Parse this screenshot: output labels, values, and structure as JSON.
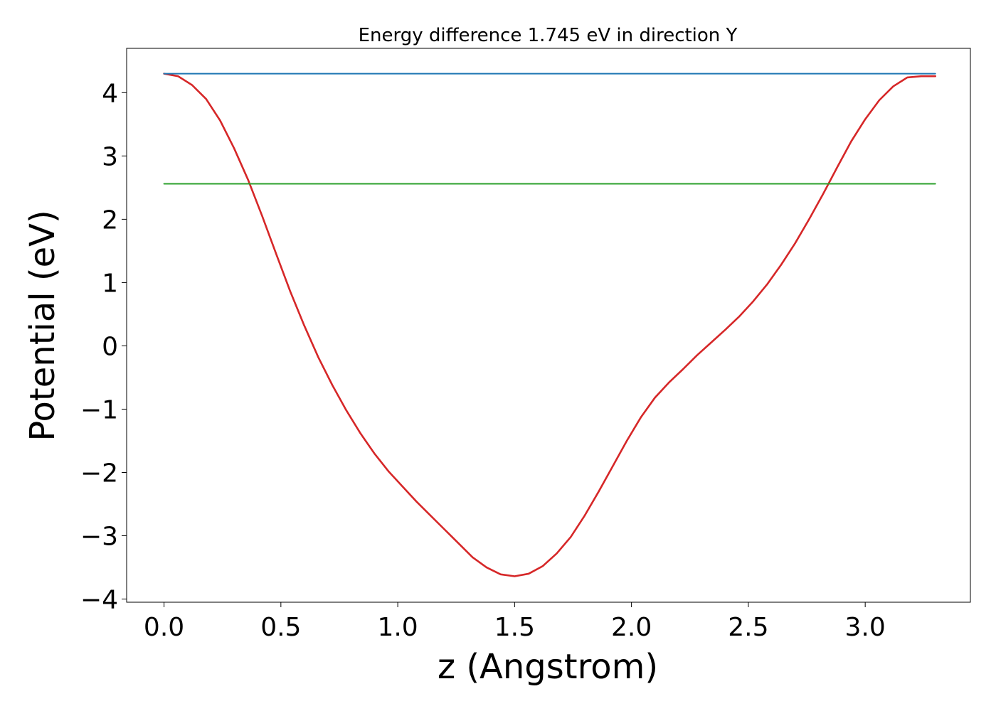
{
  "chart_data": {
    "type": "line",
    "title": "Energy difference 1.745 eV in direction Y",
    "xlabel": "z (Angstrom)",
    "ylabel": "Potential (eV)",
    "xlim": [
      -0.16,
      3.45
    ],
    "ylim": [
      -4.05,
      4.7
    ],
    "xticks": [
      0.0,
      0.5,
      1.0,
      1.5,
      2.0,
      2.5,
      3.0
    ],
    "xtick_labels": [
      "0.0",
      "0.5",
      "1.0",
      "1.5",
      "2.0",
      "2.5",
      "3.0"
    ],
    "yticks": [
      -4,
      -3,
      -2,
      -1,
      0,
      1,
      2,
      3,
      4
    ],
    "ytick_labels": [
      "−4",
      "−3",
      "−2",
      "−1",
      "0",
      "1",
      "2",
      "3",
      "4"
    ],
    "grid": false,
    "legend": "none",
    "series": [
      {
        "color": "#d62728",
        "x": [
          0.0,
          0.06,
          0.12,
          0.18,
          0.24,
          0.3,
          0.36,
          0.42,
          0.48,
          0.54,
          0.6,
          0.66,
          0.72,
          0.78,
          0.84,
          0.9,
          0.96,
          1.02,
          1.08,
          1.14,
          1.2,
          1.26,
          1.32,
          1.38,
          1.44,
          1.5,
          1.56,
          1.62,
          1.68,
          1.74,
          1.8,
          1.86,
          1.92,
          1.98,
          2.04,
          2.1,
          2.16,
          2.22,
          2.28,
          2.34,
          2.4,
          2.46,
          2.52,
          2.58,
          2.64,
          2.7,
          2.76,
          2.82,
          2.88,
          2.94,
          3.0,
          3.06,
          3.12,
          3.18,
          3.24,
          3.3
        ],
        "y": [
          4.3,
          4.26,
          4.12,
          3.9,
          3.56,
          3.12,
          2.62,
          2.05,
          1.45,
          0.86,
          0.32,
          -0.18,
          -0.62,
          -1.02,
          -1.38,
          -1.7,
          -1.98,
          -2.22,
          -2.46,
          -2.68,
          -2.9,
          -3.12,
          -3.34,
          -3.5,
          -3.61,
          -3.64,
          -3.6,
          -3.48,
          -3.28,
          -3.02,
          -2.68,
          -2.3,
          -1.9,
          -1.5,
          -1.13,
          -0.82,
          -0.58,
          -0.37,
          -0.15,
          0.05,
          0.25,
          0.46,
          0.7,
          0.97,
          1.28,
          1.62,
          2.0,
          2.4,
          2.82,
          3.23,
          3.58,
          3.88,
          4.1,
          4.24,
          4.26,
          4.26
        ]
      },
      {
        "color": "#1f77b4",
        "x": [
          0.0,
          3.3
        ],
        "y": [
          4.3,
          4.3
        ]
      },
      {
        "color": "#2ca02c",
        "x": [
          0.0,
          3.3
        ],
        "y": [
          2.56,
          2.56
        ]
      }
    ]
  }
}
